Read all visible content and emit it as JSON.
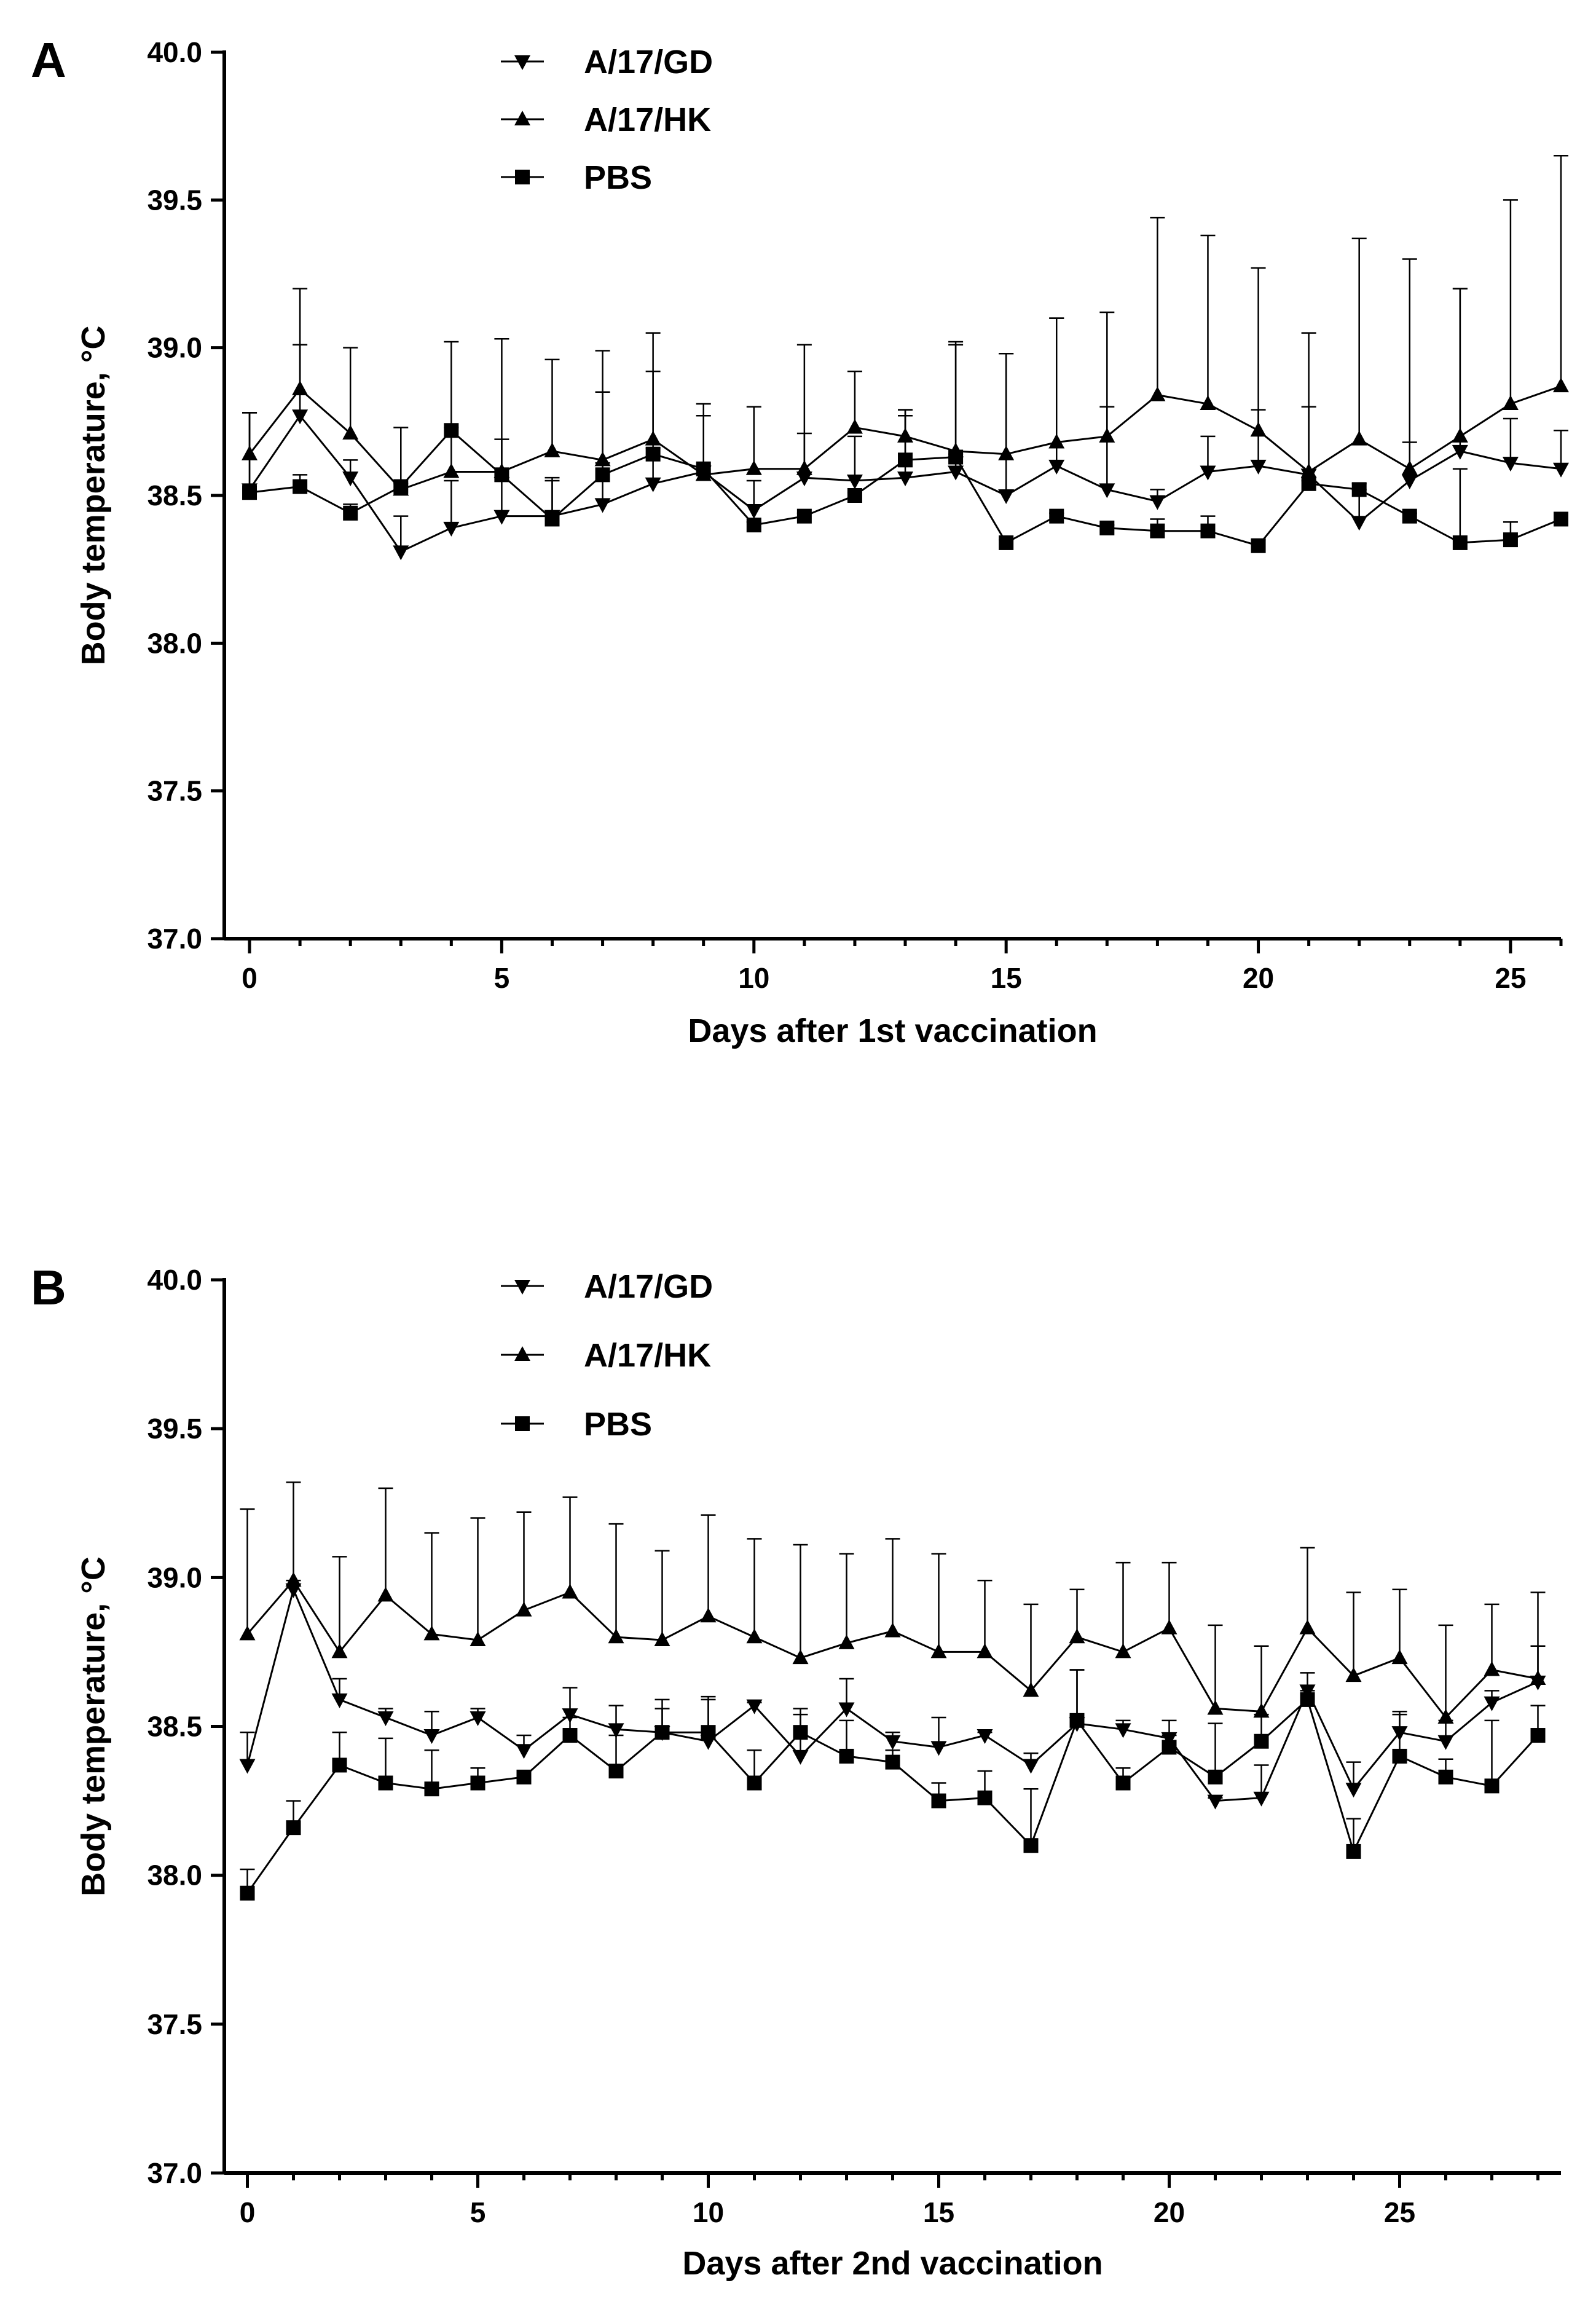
{
  "chart_data": [
    {
      "type": "line",
      "panel_label": "A",
      "xlabel": "Days after 1st vaccination",
      "ylabel": "Body temperature, °C",
      "xlim": [
        -0.5,
        26
      ],
      "ylim": [
        37.0,
        40.0
      ],
      "xticks": [
        0,
        5,
        10,
        15,
        20,
        25
      ],
      "yticks": [
        37.0,
        37.5,
        38.0,
        38.5,
        39.0,
        39.5,
        40.0
      ],
      "ytick_labels": [
        "37.0",
        "37.5",
        "38.0",
        "38.5",
        "39.0",
        "39.5",
        "40.0"
      ],
      "legend": "top-center",
      "series": [
        {
          "name": "A/17/GD",
          "marker": "triangle-down",
          "x": [
            0,
            1,
            2,
            3,
            4,
            5,
            6,
            7,
            8,
            9,
            10,
            11,
            12,
            13,
            14,
            15,
            16,
            17,
            18,
            19,
            20,
            21,
            22,
            23,
            24,
            25,
            26
          ],
          "values": [
            38.52,
            38.77,
            38.56,
            38.31,
            38.39,
            38.43,
            38.43,
            38.47,
            38.54,
            38.58,
            38.45,
            38.56,
            38.55,
            38.56,
            38.58,
            38.5,
            38.6,
            38.52,
            38.48,
            38.58,
            38.6,
            38.57,
            38.41,
            38.55,
            38.65,
            38.61,
            38.59
          ],
          "errors": [
            0.26,
            0.24,
            0.06,
            0.12,
            0.16,
            0.26,
            0.12,
            0.38,
            0.38,
            0.19,
            0.1,
            0.15,
            0.15,
            0.21,
            0.43,
            0.48,
            0.5,
            0.28,
            0.04,
            0.12,
            0.19,
            0.23,
            0.11,
            0.13,
            0.55,
            0.15,
            0.13
          ]
        },
        {
          "name": "A/17/HK",
          "marker": "triangle-up",
          "x": [
            0,
            1,
            2,
            3,
            4,
            5,
            6,
            7,
            8,
            9,
            10,
            11,
            12,
            13,
            14,
            15,
            16,
            17,
            18,
            19,
            20,
            21,
            22,
            23,
            24,
            25,
            26
          ],
          "values": [
            38.64,
            38.86,
            38.71,
            38.52,
            38.58,
            38.58,
            38.65,
            38.62,
            38.69,
            38.57,
            38.59,
            38.59,
            38.73,
            38.7,
            38.65,
            38.64,
            38.68,
            38.7,
            38.84,
            38.81,
            38.72,
            38.58,
            38.69,
            38.59,
            38.7,
            38.81,
            38.87
          ],
          "errors": [
            0.14,
            0.34,
            0.29,
            0.21,
            0.44,
            0.45,
            0.31,
            0.37,
            0.36,
            0.24,
            0.21,
            0.42,
            0.19,
            0.09,
            0.37,
            0.34,
            0.42,
            0.42,
            0.6,
            0.57,
            0.55,
            0.47,
            0.68,
            0.71,
            0.5,
            0.69,
            0.78
          ]
        },
        {
          "name": "PBS",
          "marker": "square",
          "x": [
            0,
            1,
            2,
            3,
            4,
            5,
            6,
            7,
            8,
            9,
            10,
            11,
            12,
            13,
            14,
            15,
            16,
            17,
            18,
            19,
            20,
            21,
            22,
            23,
            24,
            25,
            26
          ],
          "values": [
            38.51,
            38.53,
            38.44,
            38.53,
            38.72,
            38.57,
            38.42,
            38.57,
            38.64,
            38.59,
            38.4,
            38.43,
            38.5,
            38.62,
            38.63,
            38.34,
            38.43,
            38.39,
            38.38,
            38.38,
            38.33,
            38.54,
            38.52,
            38.43,
            38.34,
            38.35,
            38.42
          ],
          "errors": [
            0.27,
            0.04,
            0.03,
            0.01,
            0.01,
            0.02,
            0.14,
            0.04,
            0.02,
            0.01,
            0.01,
            0.01,
            0.01,
            0.17,
            0.01,
            0.01,
            0.01,
            0.01,
            0.04,
            0.05,
            0.02,
            0.01,
            0.02,
            0.01,
            0.25,
            0.06,
            0.01
          ]
        }
      ]
    },
    {
      "type": "line",
      "panel_label": "B",
      "xlabel": "Days after 2nd vaccination",
      "ylabel": "Body temperature, °C",
      "xlim": [
        -0.5,
        28.5
      ],
      "ylim": [
        37.0,
        40.0
      ],
      "xticks": [
        0,
        5,
        10,
        15,
        20,
        25
      ],
      "yticks": [
        37.0,
        37.5,
        38.0,
        38.5,
        39.0,
        39.5,
        40.0
      ],
      "ytick_labels": [
        "37.0",
        "37.5",
        "38.0",
        "38.5",
        "39.0",
        "39.5",
        "40.0"
      ],
      "legend": "top-center",
      "series": [
        {
          "name": "A/17/GD",
          "marker": "triangle-down",
          "x": [
            0,
            1,
            2,
            3,
            4,
            5,
            6,
            7,
            8,
            9,
            10,
            11,
            12,
            13,
            14,
            15,
            16,
            17,
            18,
            19,
            20,
            21,
            22,
            23,
            24,
            25,
            26,
            27,
            28
          ],
          "values": [
            38.37,
            38.96,
            38.59,
            38.53,
            38.47,
            38.53,
            38.42,
            38.54,
            38.49,
            38.48,
            38.45,
            38.57,
            38.4,
            38.56,
            38.45,
            38.43,
            38.47,
            38.37,
            38.51,
            38.49,
            38.46,
            38.25,
            38.26,
            38.62,
            38.29,
            38.48,
            38.45,
            38.58,
            38.65
          ],
          "errors": [
            0.11,
            0.03,
            0.07,
            0.03,
            0.08,
            0.03,
            0.05,
            0.09,
            0.08,
            0.11,
            0.15,
            0.01,
            0.16,
            0.1,
            0.03,
            0.1,
            0.01,
            0.04,
            0.18,
            0.03,
            0.06,
            0.01,
            0.11,
            0.06,
            0.09,
            0.07,
            0.07,
            0.04,
            0.12
          ]
        },
        {
          "name": "A/17/HK",
          "marker": "triangle-up",
          "x": [
            0,
            1,
            2,
            3,
            4,
            5,
            6,
            7,
            8,
            9,
            10,
            11,
            12,
            13,
            14,
            15,
            16,
            17,
            18,
            19,
            20,
            21,
            22,
            23,
            24,
            25,
            26,
            27,
            28
          ],
          "values": [
            38.81,
            38.99,
            38.75,
            38.94,
            38.81,
            38.79,
            38.89,
            38.95,
            38.8,
            38.79,
            38.87,
            38.8,
            38.73,
            38.78,
            38.82,
            38.75,
            38.75,
            38.62,
            38.8,
            38.75,
            38.83,
            38.56,
            38.55,
            38.83,
            38.67,
            38.73,
            38.53,
            38.69,
            38.66
          ],
          "errors": [
            0.42,
            0.33,
            0.32,
            0.36,
            0.34,
            0.41,
            0.33,
            0.32,
            0.38,
            0.3,
            0.34,
            0.33,
            0.38,
            0.3,
            0.31,
            0.33,
            0.24,
            0.29,
            0.16,
            0.3,
            0.22,
            0.28,
            0.22,
            0.27,
            0.28,
            0.23,
            0.31,
            0.22,
            0.29
          ]
        },
        {
          "name": "PBS",
          "marker": "square",
          "x": [
            0,
            1,
            2,
            3,
            4,
            5,
            6,
            7,
            8,
            9,
            10,
            11,
            12,
            13,
            14,
            15,
            16,
            17,
            18,
            19,
            20,
            21,
            22,
            23,
            24,
            25,
            26,
            27,
            28
          ],
          "values": [
            37.94,
            38.16,
            38.37,
            38.31,
            38.29,
            38.31,
            38.33,
            38.47,
            38.35,
            38.48,
            38.48,
            38.31,
            38.48,
            38.4,
            38.38,
            38.25,
            38.26,
            38.1,
            38.52,
            38.31,
            38.43,
            38.33,
            38.45,
            38.59,
            38.08,
            38.4,
            38.33,
            38.3,
            38.47
          ],
          "errors": [
            0.08,
            0.09,
            0.11,
            0.15,
            0.13,
            0.05,
            0.02,
            0.06,
            0.12,
            0.08,
            0.11,
            0.11,
            0.06,
            0.12,
            0.04,
            0.06,
            0.09,
            0.19,
            0.17,
            0.05,
            0.04,
            0.18,
            0.09,
            0.03,
            0.11,
            0.14,
            0.06,
            0.22,
            0.1
          ]
        }
      ]
    }
  ]
}
